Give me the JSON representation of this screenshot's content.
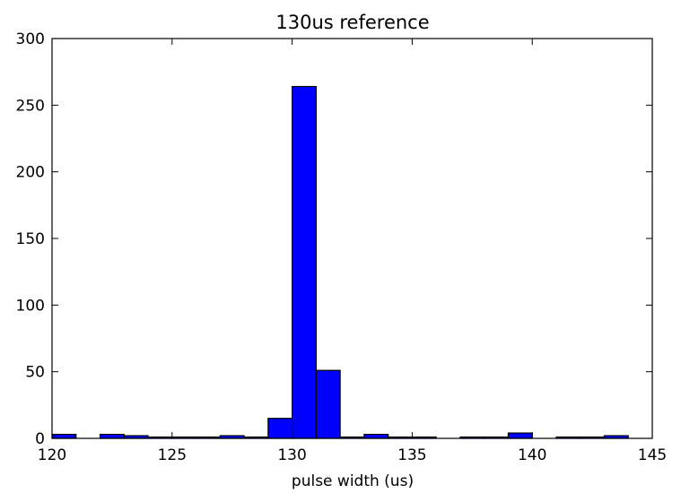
{
  "chart_data": {
    "type": "histogram",
    "title": "130us reference",
    "xlabel": "pulse width (us)",
    "bins": [
      120,
      121,
      122,
      123,
      124,
      125,
      126,
      127,
      128,
      129,
      130,
      131,
      132,
      133,
      134,
      135,
      136,
      137,
      138,
      139,
      140,
      141,
      142,
      143,
      144
    ],
    "values": [
      3,
      0,
      3,
      2,
      1,
      1,
      1,
      2,
      1,
      15,
      264,
      51,
      1,
      3,
      1,
      1,
      0,
      1,
      1,
      4,
      0,
      1,
      1,
      2
    ],
    "color": "#0000ff",
    "xlim": [
      120,
      145
    ],
    "xticks": [
      120,
      125,
      130,
      135,
      140,
      145
    ],
    "ylim": [
      0,
      300
    ],
    "yticks": [
      0,
      50,
      100,
      150,
      200,
      250,
      300
    ]
  }
}
